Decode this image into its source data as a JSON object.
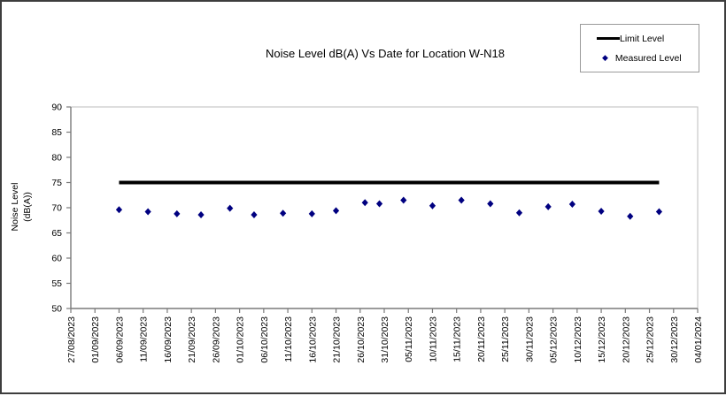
{
  "title": "Noise Level dB(A) Vs Date for Location W-N18",
  "chart_data": {
    "type": "scatter",
    "title": "Noise Level dB(A) Vs Date for Location W-N18",
    "xlabel": "",
    "ylabel": "Noise Level (dB(A))",
    "ylabel_lines": [
      "Noise Level",
      "(dB(A))"
    ],
    "ylim": [
      50,
      90
    ],
    "yticks": [
      50,
      55,
      60,
      65,
      70,
      75,
      80,
      85,
      90
    ],
    "grid": false,
    "legend_position": "top-right",
    "x_start_date": "27/08/2023",
    "x_end_date": "04/01/2024",
    "x_tick_interval_days": 5,
    "x_tick_labels": [
      "27/08/2023",
      "01/09/2023",
      "06/09/2023",
      "11/09/2023",
      "16/09/2023",
      "21/09/2023",
      "26/09/2023",
      "01/10/2023",
      "06/10/2023",
      "11/10/2023",
      "16/10/2023",
      "21/10/2023",
      "26/10/2023",
      "31/10/2023",
      "05/11/2023",
      "10/11/2023",
      "15/11/2023",
      "20/11/2023",
      "25/11/2023",
      "30/11/2023",
      "05/12/2023",
      "10/12/2023",
      "15/12/2023",
      "20/12/2023",
      "25/12/2023",
      "30/12/2023",
      "04/01/2024"
    ],
    "limit_series": {
      "name": "Limit Level",
      "color": "#000000",
      "value": 75,
      "from_day": 10,
      "to_day": 122,
      "from_date": "06/09/2023",
      "to_date": "27/12/2023"
    },
    "measured_series": {
      "name": "Measured Level",
      "color": "#000080",
      "marker": "diamond",
      "points": [
        {
          "date": "06/09/2023",
          "day": 10,
          "value": 69.6
        },
        {
          "date": "12/09/2023",
          "day": 16,
          "value": 69.2
        },
        {
          "date": "18/09/2023",
          "day": 22,
          "value": 68.8
        },
        {
          "date": "23/09/2023",
          "day": 27,
          "value": 68.6
        },
        {
          "date": "29/09/2023",
          "day": 33,
          "value": 69.9
        },
        {
          "date": "04/10/2023",
          "day": 38,
          "value": 68.6
        },
        {
          "date": "10/10/2023",
          "day": 44,
          "value": 68.9
        },
        {
          "date": "16/10/2023",
          "day": 50,
          "value": 68.8
        },
        {
          "date": "21/10/2023",
          "day": 55,
          "value": 69.4
        },
        {
          "date": "27/10/2023",
          "day": 61,
          "value": 71.0
        },
        {
          "date": "30/10/2023",
          "day": 64,
          "value": 70.8
        },
        {
          "date": "04/11/2023",
          "day": 69,
          "value": 71.5
        },
        {
          "date": "10/11/2023",
          "day": 75,
          "value": 70.4
        },
        {
          "date": "16/11/2023",
          "day": 81,
          "value": 71.5
        },
        {
          "date": "22/11/2023",
          "day": 87,
          "value": 70.8
        },
        {
          "date": "28/11/2023",
          "day": 93,
          "value": 69.0
        },
        {
          "date": "04/12/2023",
          "day": 99,
          "value": 70.2
        },
        {
          "date": "09/12/2023",
          "day": 104,
          "value": 70.7
        },
        {
          "date": "15/12/2023",
          "day": 110,
          "value": 69.3
        },
        {
          "date": "21/12/2023",
          "day": 116,
          "value": 68.3
        },
        {
          "date": "27/12/2023",
          "day": 122,
          "value": 69.2
        }
      ]
    }
  }
}
